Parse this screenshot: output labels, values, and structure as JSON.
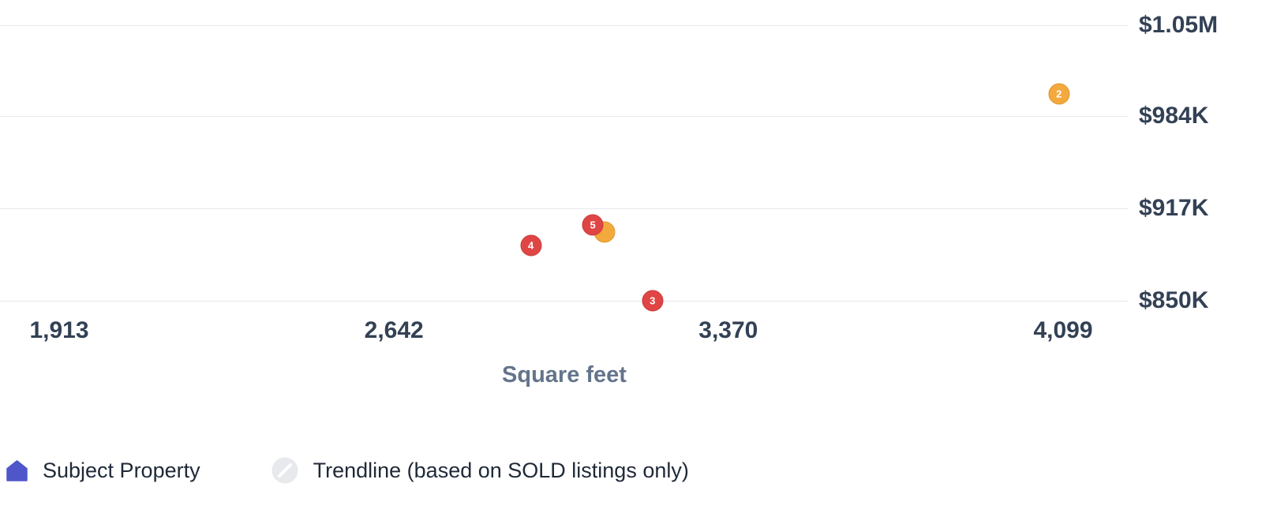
{
  "colors": {
    "red_bubble": "#e04545",
    "red_bubble_border": "#c93c3c",
    "orange_bubble": "#f3a93e",
    "orange_bubble_border": "#e0982f",
    "subject_property_icon": "#4f56c9",
    "gridline": "#e7e9ee",
    "axis_label": "#334155",
    "axis_title": "#64748b",
    "legend_text": "#1f2937",
    "trendline_icon_bg": "#e8e9ed",
    "trendline_icon_stroke": "#ffffff"
  },
  "chart_data": {
    "type": "scatter",
    "title": "",
    "xlabel": "Square feet",
    "ylabel": "",
    "x_range": [
      1913,
      4099
    ],
    "y_range": [
      850000,
      1050000
    ],
    "grid": "horizontal",
    "legend_position": "bottom-left",
    "x_ticks": [
      {
        "label": "1,913",
        "value": 1913
      },
      {
        "label": "2,642",
        "value": 2642
      },
      {
        "label": "3,370",
        "value": 3370
      },
      {
        "label": "4,099",
        "value": 4099
      }
    ],
    "y_ticks": [
      {
        "label": "$1.05M",
        "value": 1050000
      },
      {
        "label": "$984K",
        "value": 984000
      },
      {
        "label": "$917K",
        "value": 917000
      },
      {
        "label": "$850K",
        "value": 850000
      }
    ],
    "points": [
      {
        "label": "2",
        "sqft": 4090,
        "price": 1000000,
        "color": "orange"
      },
      {
        "label": "",
        "sqft": 3100,
        "price": 900000,
        "color": "orange"
      },
      {
        "label": "5",
        "sqft": 3075,
        "price": 905000,
        "color": "red"
      },
      {
        "label": "4",
        "sqft": 2940,
        "price": 890000,
        "color": "red"
      },
      {
        "label": "3",
        "sqft": 3205,
        "price": 850000,
        "color": "red"
      }
    ]
  },
  "legend": {
    "items": [
      {
        "icon": "subject-property-house-icon",
        "label": "Subject Property"
      },
      {
        "icon": "trendline-icon",
        "label": "Trendline (based on SOLD listings only)"
      }
    ]
  }
}
